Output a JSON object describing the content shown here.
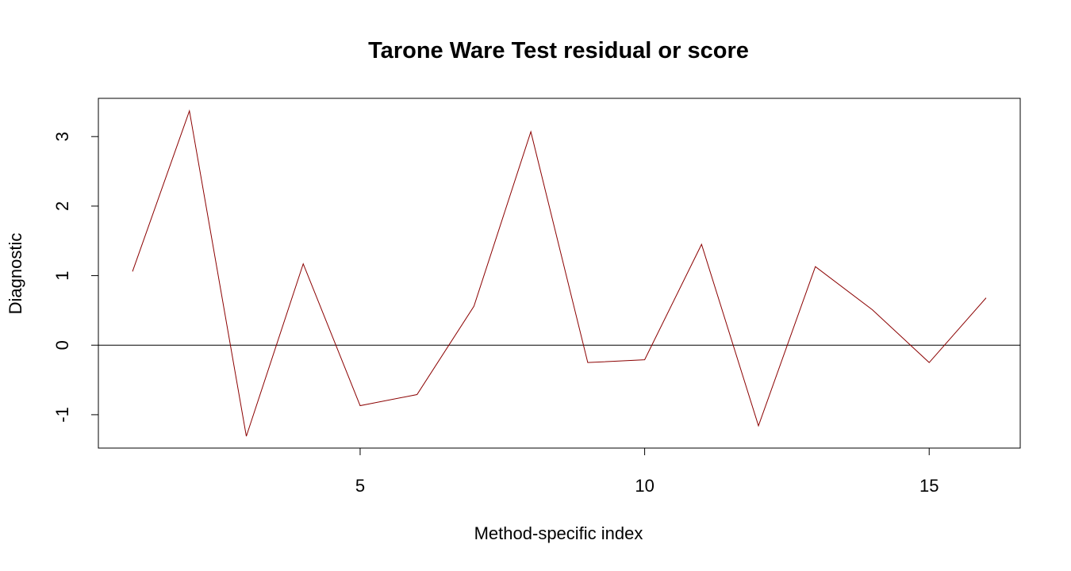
{
  "chart_data": {
    "type": "line",
    "title": "Tarone Ware Test residual or score",
    "xlabel": "Method-specific index",
    "ylabel": "Diagnostic",
    "x": [
      1,
      2,
      3,
      4,
      5,
      6,
      7,
      8,
      9,
      10,
      11,
      12,
      13,
      14,
      15,
      16
    ],
    "series": [
      {
        "values": [
          1.06,
          3.37,
          -1.31,
          1.17,
          -0.87,
          -0.71,
          0.56,
          3.07,
          -0.25,
          -0.21,
          1.45,
          -1.16,
          1.13,
          0.51,
          -0.25,
          0.68
        ],
        "color": "#8B0000"
      }
    ],
    "xlim": [
      0.4,
      16.6
    ],
    "ylim": [
      -1.48,
      3.55
    ],
    "xticks": [
      "5",
      "10",
      "15"
    ],
    "yticks": [
      "-1",
      "0",
      "1",
      "2",
      "3"
    ],
    "reference_line": {
      "y": 0,
      "color": "#000000"
    },
    "grid": false,
    "legend": "none"
  }
}
